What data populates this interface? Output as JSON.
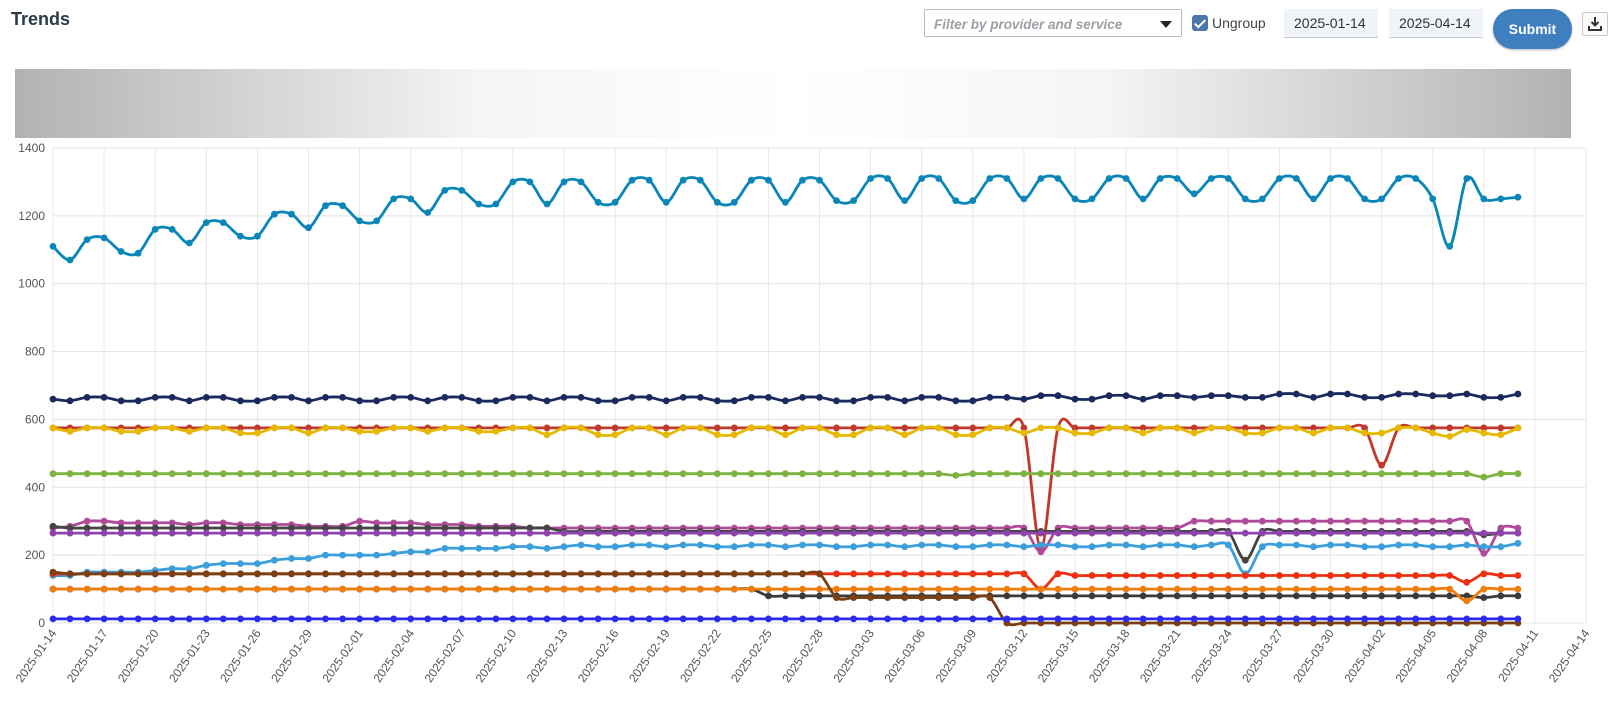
{
  "header": {
    "title": "Trends"
  },
  "filter": {
    "placeholder": "Filter by provider and service"
  },
  "ungroup": {
    "label": "Ungroup",
    "checked": true
  },
  "date_range": {
    "start": "2025-01-14",
    "end": "2025-04-14"
  },
  "submit_label": "Submit",
  "icons": {
    "download": "download-icon",
    "dropdown": "caret-down-icon",
    "checkbox": "check-icon"
  },
  "colors": {
    "accent": "#3f7fbf"
  },
  "chart_data": {
    "type": "line",
    "title": "",
    "xlabel": "",
    "ylabel": "",
    "ylim": [
      0,
      1400
    ],
    "yticks": [
      0,
      200,
      400,
      600,
      800,
      1000,
      1200,
      1400
    ],
    "grid": true,
    "x_start": "2025-01-14",
    "x_end": "2025-04-14",
    "x_tick_every_days": 3,
    "series": [
      {
        "color": "#0a86b8",
        "values": [
          1110,
          1070,
          1130,
          1135,
          1095,
          1090,
          1160,
          1160,
          1120,
          1180,
          1180,
          1140,
          1140,
          1205,
          1205,
          1165,
          1230,
          1230,
          1185,
          1185,
          1250,
          1250,
          1210,
          1275,
          1275,
          1235,
          1235,
          1300,
          1300,
          1235,
          1300,
          1300,
          1240,
          1240,
          1305,
          1305,
          1240,
          1305,
          1305,
          1240,
          1240,
          1305,
          1305,
          1240,
          1305,
          1305,
          1245,
          1245,
          1310,
          1310,
          1245,
          1310,
          1310,
          1245,
          1245,
          1310,
          1310,
          1250,
          1310,
          1310,
          1250,
          1250,
          1310,
          1310,
          1250,
          1310,
          1310,
          1265,
          1310,
          1310,
          1250,
          1250,
          1310,
          1310,
          1250,
          1310,
          1310,
          1250,
          1250,
          1310,
          1310,
          1250,
          1110,
          1310,
          1250,
          1250,
          1255
        ]
      },
      {
        "color": "#1a2a5e",
        "values": [
          660,
          655,
          665,
          665,
          655,
          655,
          665,
          665,
          655,
          665,
          665,
          655,
          655,
          665,
          665,
          655,
          665,
          665,
          655,
          655,
          665,
          665,
          655,
          665,
          665,
          655,
          655,
          665,
          665,
          655,
          665,
          665,
          655,
          655,
          665,
          665,
          655,
          665,
          665,
          655,
          655,
          665,
          665,
          655,
          665,
          665,
          655,
          655,
          665,
          665,
          655,
          665,
          665,
          655,
          655,
          665,
          665,
          660,
          670,
          670,
          660,
          660,
          670,
          670,
          660,
          670,
          670,
          665,
          670,
          670,
          665,
          665,
          675,
          675,
          665,
          675,
          675,
          665,
          665,
          675,
          675,
          670,
          670,
          675,
          665,
          665,
          675
        ]
      },
      {
        "color": "#c0392b",
        "values": [
          575,
          575,
          575,
          575,
          575,
          575,
          575,
          575,
          575,
          575,
          575,
          575,
          575,
          575,
          575,
          575,
          575,
          575,
          575,
          575,
          575,
          575,
          575,
          575,
          575,
          575,
          575,
          575,
          575,
          575,
          575,
          575,
          575,
          575,
          575,
          575,
          575,
          575,
          575,
          575,
          575,
          575,
          575,
          575,
          575,
          575,
          575,
          575,
          575,
          575,
          575,
          575,
          575,
          575,
          575,
          575,
          575,
          575,
          220,
          575,
          575,
          575,
          575,
          575,
          575,
          575,
          575,
          575,
          575,
          575,
          575,
          575,
          575,
          575,
          575,
          575,
          575,
          575,
          465,
          575,
          575,
          575,
          575,
          575,
          575,
          575,
          575
        ]
      },
      {
        "color": "#e6b800",
        "values": [
          575,
          565,
          575,
          575,
          565,
          565,
          575,
          575,
          565,
          575,
          575,
          560,
          560,
          575,
          575,
          560,
          575,
          575,
          565,
          565,
          575,
          575,
          565,
          575,
          575,
          565,
          565,
          575,
          575,
          555,
          575,
          575,
          555,
          555,
          575,
          575,
          555,
          575,
          575,
          555,
          555,
          575,
          575,
          555,
          575,
          575,
          555,
          555,
          575,
          575,
          555,
          575,
          575,
          555,
          555,
          575,
          575,
          560,
          575,
          575,
          560,
          560,
          575,
          575,
          560,
          575,
          575,
          560,
          575,
          575,
          560,
          560,
          575,
          575,
          560,
          575,
          575,
          560,
          560,
          575,
          575,
          560,
          550,
          570,
          560,
          555,
          575
        ]
      },
      {
        "color": "#7cb342",
        "values": [
          440,
          440,
          440,
          440,
          440,
          440,
          440,
          440,
          440,
          440,
          440,
          440,
          440,
          440,
          440,
          440,
          440,
          440,
          440,
          440,
          440,
          440,
          440,
          440,
          440,
          440,
          440,
          440,
          440,
          440,
          440,
          440,
          440,
          440,
          440,
          440,
          440,
          440,
          440,
          440,
          440,
          440,
          440,
          440,
          440,
          440,
          440,
          440,
          440,
          440,
          440,
          440,
          440,
          435,
          440,
          440,
          440,
          440,
          440,
          440,
          440,
          440,
          440,
          440,
          440,
          440,
          440,
          440,
          440,
          440,
          440,
          440,
          440,
          440,
          440,
          440,
          440,
          440,
          440,
          440,
          440,
          440,
          440,
          440,
          430,
          440,
          440
        ]
      },
      {
        "color": "#b04a9a",
        "values": [
          280,
          285,
          300,
          300,
          295,
          295,
          295,
          295,
          290,
          295,
          295,
          290,
          290,
          290,
          290,
          285,
          285,
          285,
          300,
          295,
          295,
          295,
          290,
          290,
          290,
          285,
          285,
          285,
          280,
          280,
          280,
          280,
          280,
          280,
          280,
          280,
          280,
          280,
          280,
          280,
          280,
          280,
          280,
          280,
          280,
          280,
          280,
          280,
          280,
          280,
          280,
          280,
          280,
          280,
          280,
          280,
          280,
          280,
          210,
          280,
          280,
          280,
          280,
          280,
          280,
          280,
          280,
          300,
          300,
          300,
          300,
          300,
          300,
          300,
          300,
          300,
          300,
          300,
          300,
          300,
          300,
          300,
          300,
          300,
          205,
          280,
          280
        ]
      },
      {
        "color": "#444444",
        "values": [
          285,
          280,
          280,
          280,
          280,
          280,
          280,
          280,
          280,
          280,
          280,
          280,
          280,
          280,
          280,
          280,
          280,
          280,
          280,
          280,
          280,
          280,
          280,
          280,
          280,
          280,
          280,
          280,
          280,
          280,
          270,
          270,
          270,
          270,
          270,
          270,
          270,
          270,
          270,
          270,
          270,
          270,
          270,
          270,
          270,
          270,
          270,
          270,
          270,
          270,
          270,
          270,
          270,
          270,
          270,
          270,
          270,
          270,
          270,
          270,
          270,
          270,
          270,
          270,
          270,
          270,
          270,
          270,
          270,
          270,
          185,
          270,
          270,
          270,
          270,
          270,
          270,
          270,
          270,
          270,
          270,
          270,
          270,
          270,
          260,
          265,
          265
        ]
      },
      {
        "color": "#8e44ad",
        "values": [
          265,
          265,
          265,
          265,
          265,
          265,
          265,
          265,
          265,
          265,
          265,
          265,
          265,
          265,
          265,
          265,
          265,
          265,
          265,
          265,
          265,
          265,
          265,
          265,
          265,
          265,
          265,
          265,
          265,
          265,
          265,
          265,
          265,
          265,
          265,
          265,
          265,
          265,
          265,
          265,
          265,
          265,
          265,
          265,
          265,
          265,
          265,
          265,
          265,
          265,
          265,
          265,
          265,
          265,
          265,
          265,
          265,
          265,
          265,
          265,
          265,
          265,
          265,
          265,
          265,
          265,
          265,
          265,
          265,
          265,
          265,
          265,
          265,
          265,
          265,
          265,
          265,
          265,
          265,
          265,
          265,
          265,
          265,
          265,
          265,
          265,
          265
        ]
      },
      {
        "color": "#3a9fdb",
        "values": [
          140,
          140,
          150,
          150,
          150,
          150,
          155,
          160,
          160,
          170,
          175,
          175,
          175,
          185,
          190,
          190,
          200,
          200,
          200,
          200,
          205,
          210,
          210,
          220,
          220,
          220,
          220,
          225,
          225,
          220,
          225,
          230,
          225,
          225,
          230,
          230,
          225,
          230,
          230,
          225,
          225,
          230,
          230,
          225,
          230,
          230,
          225,
          225,
          230,
          230,
          225,
          230,
          230,
          225,
          225,
          230,
          230,
          225,
          230,
          230,
          225,
          225,
          230,
          230,
          225,
          230,
          230,
          225,
          230,
          230,
          145,
          225,
          230,
          230,
          225,
          230,
          230,
          225,
          225,
          230,
          230,
          225,
          225,
          230,
          225,
          225,
          235
        ]
      },
      {
        "color": "#ee3010",
        "values": [
          145,
          145,
          145,
          145,
          145,
          145,
          145,
          145,
          145,
          145,
          145,
          145,
          145,
          145,
          145,
          145,
          145,
          145,
          145,
          145,
          145,
          145,
          145,
          145,
          145,
          145,
          145,
          145,
          145,
          145,
          145,
          145,
          145,
          145,
          145,
          145,
          145,
          145,
          145,
          145,
          145,
          145,
          145,
          145,
          145,
          145,
          145,
          145,
          145,
          145,
          145,
          145,
          145,
          145,
          145,
          145,
          145,
          145,
          100,
          145,
          140,
          140,
          140,
          140,
          140,
          140,
          140,
          140,
          140,
          140,
          140,
          140,
          140,
          140,
          140,
          140,
          140,
          140,
          140,
          140,
          140,
          140,
          140,
          120,
          145,
          140,
          140
        ]
      },
      {
        "color": "#3a3a3a",
        "values": [
          100,
          100,
          100,
          100,
          100,
          100,
          100,
          100,
          100,
          100,
          100,
          100,
          100,
          100,
          100,
          100,
          100,
          100,
          100,
          100,
          100,
          100,
          100,
          100,
          100,
          100,
          100,
          100,
          100,
          100,
          100,
          100,
          100,
          100,
          100,
          100,
          100,
          100,
          100,
          100,
          100,
          100,
          80,
          80,
          80,
          80,
          80,
          80,
          80,
          80,
          80,
          80,
          80,
          80,
          80,
          80,
          80,
          80,
          80,
          80,
          80,
          80,
          80,
          80,
          80,
          80,
          80,
          80,
          80,
          80,
          80,
          80,
          80,
          80,
          80,
          80,
          80,
          80,
          80,
          80,
          80,
          80,
          80,
          80,
          75,
          80,
          80
        ]
      },
      {
        "color": "#ef7d0e",
        "values": [
          100,
          100,
          100,
          100,
          100,
          100,
          100,
          100,
          100,
          100,
          100,
          100,
          100,
          100,
          100,
          100,
          100,
          100,
          100,
          100,
          100,
          100,
          100,
          100,
          100,
          100,
          100,
          100,
          100,
          100,
          100,
          100,
          100,
          100,
          100,
          100,
          100,
          100,
          100,
          100,
          100,
          100,
          100,
          100,
          100,
          100,
          100,
          100,
          100,
          100,
          100,
          100,
          100,
          100,
          100,
          100,
          100,
          100,
          100,
          100,
          100,
          100,
          100,
          100,
          100,
          100,
          100,
          100,
          100,
          100,
          100,
          100,
          100,
          100,
          100,
          100,
          100,
          100,
          100,
          100,
          100,
          100,
          100,
          65,
          100,
          100,
          100
        ]
      },
      {
        "color": "#7b3f14",
        "values": [
          150,
          145,
          145,
          145,
          145,
          145,
          145,
          145,
          145,
          145,
          145,
          145,
          145,
          145,
          145,
          145,
          145,
          145,
          145,
          145,
          145,
          145,
          145,
          145,
          145,
          145,
          145,
          145,
          145,
          145,
          145,
          145,
          145,
          145,
          145,
          145,
          145,
          145,
          145,
          145,
          145,
          145,
          145,
          145,
          145,
          145,
          75,
          75,
          75,
          75,
          75,
          75,
          75,
          75,
          75,
          75,
          0,
          0,
          0,
          0,
          0,
          0,
          0,
          0,
          0,
          0,
          0,
          0,
          0,
          0,
          0,
          0,
          0,
          0,
          0,
          0,
          0,
          0,
          0,
          0,
          0,
          0,
          0,
          0,
          0,
          0,
          0
        ]
      },
      {
        "color": "#2b2bf0",
        "values": [
          12,
          12,
          12,
          12,
          12,
          12,
          12,
          12,
          12,
          12,
          12,
          12,
          12,
          12,
          12,
          12,
          12,
          12,
          12,
          12,
          12,
          12,
          12,
          12,
          12,
          12,
          12,
          12,
          12,
          12,
          12,
          12,
          12,
          12,
          12,
          12,
          12,
          12,
          12,
          12,
          12,
          12,
          12,
          12,
          12,
          12,
          12,
          12,
          12,
          12,
          12,
          12,
          12,
          12,
          12,
          12,
          12,
          12,
          12,
          12,
          12,
          12,
          12,
          12,
          12,
          12,
          12,
          12,
          12,
          12,
          12,
          12,
          12,
          12,
          12,
          12,
          12,
          12,
          12,
          12,
          12,
          12,
          12,
          12,
          12,
          12,
          12
        ]
      }
    ]
  }
}
